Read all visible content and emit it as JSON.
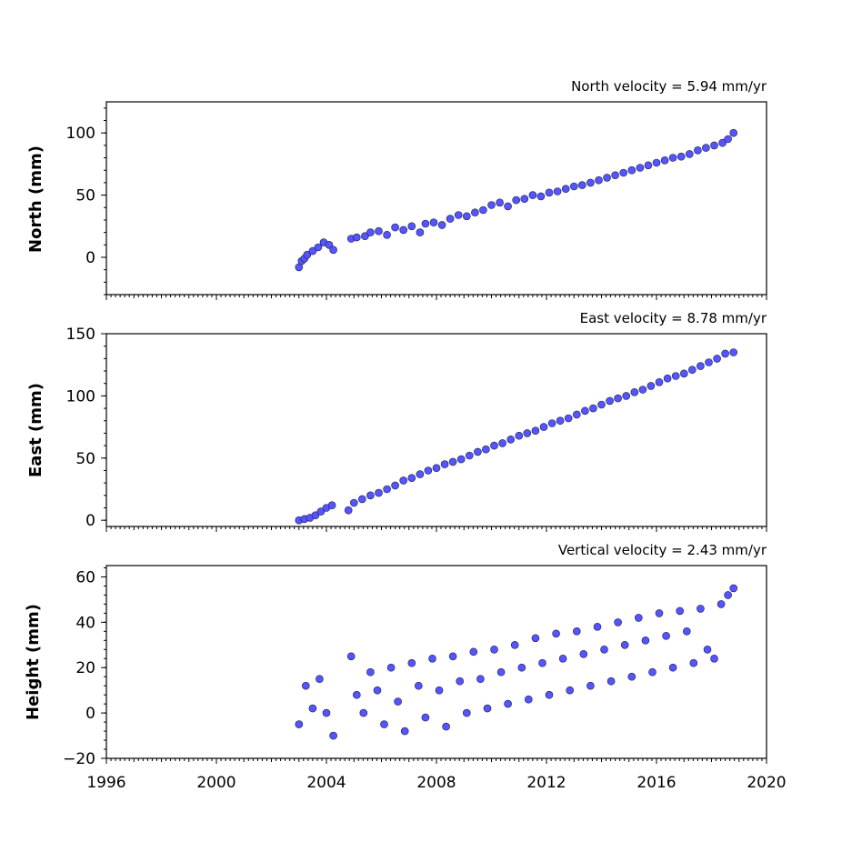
{
  "chart_data": [
    {
      "type": "scatter",
      "key": "north",
      "title": "North velocity = 5.94 mm/yr",
      "xlabel": "",
      "ylabel": "North (mm)",
      "xlim": [
        1996,
        2020
      ],
      "ylim": [
        -30,
        125
      ],
      "yticks": [
        0,
        50,
        100
      ],
      "show_xtick_labels": false,
      "series": [
        {
          "x": [
            2003.0,
            2003.1,
            2003.2,
            2003.3,
            2003.5,
            2003.7,
            2003.9,
            2004.1,
            2004.25,
            2004.9,
            2005.1,
            2005.4,
            2005.6,
            2005.9,
            2006.2,
            2006.5,
            2006.8,
            2007.1,
            2007.4,
            2007.6,
            2007.9,
            2008.2,
            2008.5,
            2008.8,
            2009.1,
            2009.4,
            2009.7,
            2010.0,
            2010.3,
            2010.6,
            2010.9,
            2011.2,
            2011.5,
            2011.8,
            2012.1,
            2012.4,
            2012.7,
            2013.0,
            2013.3,
            2013.6,
            2013.9,
            2014.2,
            2014.5,
            2014.8,
            2015.1,
            2015.4,
            2015.7,
            2016.0,
            2016.3,
            2016.6,
            2016.9,
            2017.2,
            2017.5,
            2017.8,
            2018.1,
            2018.4,
            2018.6,
            2018.8
          ],
          "y": [
            -8,
            -3,
            -1,
            2,
            5,
            8,
            12,
            10,
            6,
            15,
            16,
            17,
            20,
            21,
            18,
            24,
            22,
            25,
            20,
            27,
            28,
            26,
            31,
            34,
            33,
            36,
            38,
            42,
            44,
            41,
            46,
            47,
            50,
            49,
            52,
            53,
            55,
            57,
            58,
            60,
            62,
            64,
            66,
            68,
            70,
            72,
            74,
            76,
            78,
            80,
            81,
            83,
            86,
            88,
            90,
            92,
            95,
            100
          ]
        }
      ]
    },
    {
      "type": "scatter",
      "key": "east",
      "title": "East velocity = 8.78 mm/yr",
      "xlabel": "",
      "ylabel": "East (mm)",
      "xlim": [
        1996,
        2020
      ],
      "ylim": [
        -5,
        150
      ],
      "yticks": [
        0,
        50,
        100,
        150
      ],
      "show_xtick_labels": false,
      "series": [
        {
          "x": [
            2003.0,
            2003.2,
            2003.4,
            2003.6,
            2003.8,
            2004.0,
            2004.2,
            2004.8,
            2005.0,
            2005.3,
            2005.6,
            2005.9,
            2006.2,
            2006.5,
            2006.8,
            2007.1,
            2007.4,
            2007.7,
            2008.0,
            2008.3,
            2008.6,
            2008.9,
            2009.2,
            2009.5,
            2009.8,
            2010.1,
            2010.4,
            2010.7,
            2011.0,
            2011.3,
            2011.6,
            2011.9,
            2012.2,
            2012.5,
            2012.8,
            2013.1,
            2013.4,
            2013.7,
            2014.0,
            2014.3,
            2014.6,
            2014.9,
            2015.2,
            2015.5,
            2015.8,
            2016.1,
            2016.4,
            2016.7,
            2017.0,
            2017.3,
            2017.6,
            2017.9,
            2018.2,
            2018.5,
            2018.8
          ],
          "y": [
            0,
            1,
            2,
            4,
            7,
            10,
            12,
            8,
            14,
            17,
            20,
            22,
            25,
            28,
            32,
            34,
            37,
            40,
            42,
            45,
            47,
            49,
            52,
            55,
            57,
            60,
            62,
            65,
            68,
            70,
            72,
            75,
            78,
            80,
            82,
            85,
            88,
            90,
            93,
            96,
            98,
            100,
            103,
            105,
            108,
            111,
            114,
            116,
            118,
            121,
            124,
            127,
            130,
            134,
            135
          ]
        }
      ]
    },
    {
      "type": "scatter",
      "key": "height",
      "title": "Vertical velocity = 2.43 mm/yr",
      "xlabel": "",
      "ylabel": "Height (mm)",
      "xlim": [
        1996,
        2020
      ],
      "ylim": [
        -20,
        65
      ],
      "yticks": [
        -20,
        0,
        20,
        40,
        60
      ],
      "show_xtick_labels": true,
      "series": [
        {
          "x": [
            2003.0,
            2003.25,
            2003.5,
            2003.75,
            2004.0,
            2004.25,
            2004.9,
            2005.1,
            2005.35,
            2005.6,
            2005.85,
            2006.1,
            2006.35,
            2006.6,
            2006.85,
            2007.1,
            2007.35,
            2007.6,
            2007.85,
            2008.1,
            2008.35,
            2008.6,
            2008.85,
            2009.1,
            2009.35,
            2009.6,
            2009.85,
            2010.1,
            2010.35,
            2010.6,
            2010.85,
            2011.1,
            2011.35,
            2011.6,
            2011.85,
            2012.1,
            2012.35,
            2012.6,
            2012.85,
            2013.1,
            2013.35,
            2013.6,
            2013.85,
            2014.1,
            2014.35,
            2014.6,
            2014.85,
            2015.1,
            2015.35,
            2015.6,
            2015.85,
            2016.1,
            2016.35,
            2016.6,
            2016.85,
            2017.1,
            2017.35,
            2017.6,
            2017.85,
            2018.1,
            2018.35,
            2018.6,
            2018.8
          ],
          "y": [
            -5,
            12,
            2,
            15,
            0,
            -10,
            25,
            8,
            0,
            18,
            10,
            -5,
            20,
            5,
            -8,
            22,
            12,
            -2,
            24,
            10,
            -6,
            25,
            14,
            0,
            27,
            15,
            2,
            28,
            18,
            4,
            30,
            20,
            6,
            33,
            22,
            8,
            35,
            24,
            10,
            36,
            26,
            12,
            38,
            28,
            14,
            40,
            30,
            16,
            42,
            32,
            18,
            44,
            34,
            20,
            45,
            36,
            22,
            46,
            28,
            24,
            48,
            52,
            55
          ]
        }
      ]
    }
  ]
}
